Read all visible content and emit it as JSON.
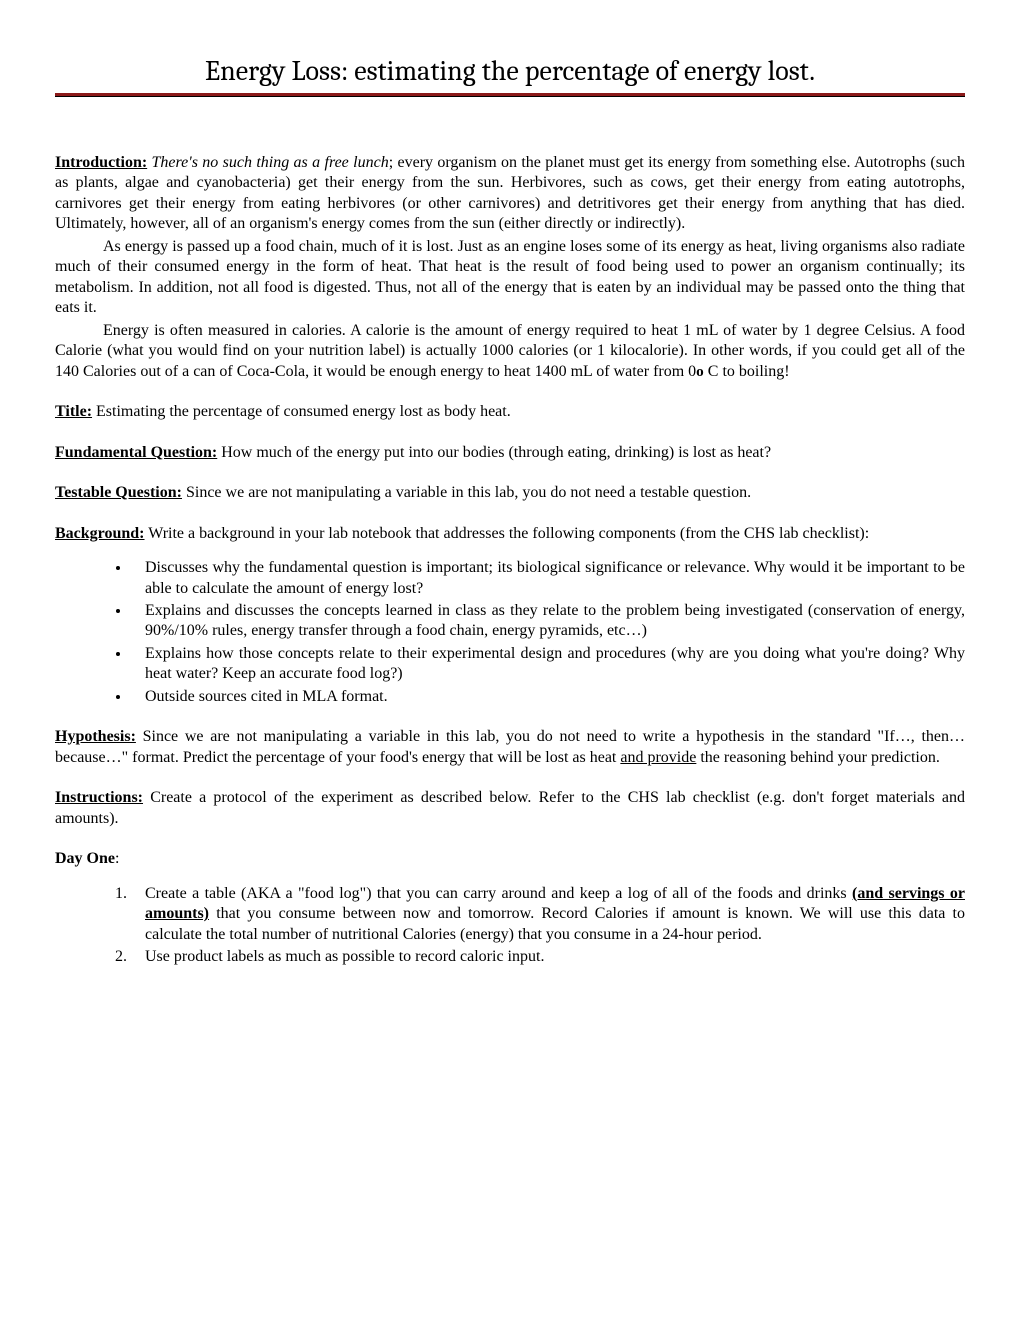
{
  "header": {
    "title": "Energy Loss: estimating the percentage of energy lost.",
    "accent_color": "#8b1a1a",
    "rule_color": "#000000"
  },
  "intro": {
    "label": "Introduction:",
    "lead_italic": "There's no such thing as a free lunch",
    "p1_rest": "; every organism on the planet must get its energy from something else. Autotrophs (such as plants, algae and cyanobacteria) get their energy from the sun. Herbivores, such as cows, get their energy from eating autotrophs, carnivores get their energy from eating herbivores (or other carnivores) and detritivores get their energy from anything that has died.  Ultimately, however, all of an organism's energy comes from the sun (either directly or indirectly).",
    "p2": "As energy is passed up a food chain, much of it is lost.  Just as an engine loses some of its energy as heat, living organisms also radiate much of their consumed energy in the form of heat.  That heat is the result of food being used to power an organism continually; its metabolism.  In addition, not all food is digested. Thus, not all of the energy that is eaten by an individual may be passed onto the thing that eats it.",
    "p3a": "Energy is often measured in calories.  A calorie is the amount of energy required to heat 1 mL of water by 1 degree Celsius.  A food Calorie (what you would find on your nutrition label) is actually 1000 calories (or 1 kilocalorie).  In other words, if you could get all of the 140 Calories out of a can of Coca-Cola, it would be enough energy to heat 1400 mL of water from 0",
    "p3_degree": "o",
    "p3b": " C to boiling!"
  },
  "title_section": {
    "label": "Title:",
    "text": "  Estimating the percentage of consumed energy lost as body heat."
  },
  "fq": {
    "label": "Fundamental Question:",
    "text": "  How much of the energy put into our bodies (through eating, drinking) is lost as heat?"
  },
  "tq": {
    "label": "Testable Question:",
    "text": "  Since we are not manipulating a variable in this lab, you do not need a testable question."
  },
  "bg": {
    "label": "Background:",
    "text": "  Write a background in your lab notebook that addresses the following components (from the CHS lab checklist):",
    "bullets": [
      "Discusses why the fundamental question is important; its biological significance or relevance.  Why would it be important to be able to calculate the amount of energy lost?",
      "Explains and discusses the concepts learned in class as they relate to the problem being investigated (conservation of energy, 90%/10% rules, energy transfer through a food chain, energy pyramids, etc…)",
      "Explains how those concepts relate to their experimental design and procedures (why are you doing what you're doing?  Why heat water?  Keep an accurate food log?)",
      "Outside sources cited in MLA format."
    ]
  },
  "hyp": {
    "label": "Hypothesis:",
    "text_a": "  Since we are not manipulating a variable in this lab, you do not need to write a hypothesis in the standard \"If…, then… because…\" format.  Predict the percentage of your food's energy that will be lost as heat ",
    "underline": "and provide",
    "text_b": " the reasoning behind your prediction."
  },
  "instr": {
    "label": "Instructions:",
    "text": "  Create a protocol of the experiment as described below.  Refer to the CHS lab checklist (e.g. don't forget materials and amounts)."
  },
  "day1": {
    "label": "Day One",
    "colon": ":",
    "items": {
      "i1a": "Create a table (AKA a \"food log\") that you can carry around and keep a log of all of the foods and drinks ",
      "i1_bold": "(and servings or amounts)",
      "i1b": " that you consume between now and tomorrow.  Record Calories if amount is known.  We will use this data to calculate the total number of nutritional Calories (energy) that you consume in a 24-hour period.",
      "i2": "Use product labels as much as possible to record caloric input."
    }
  }
}
